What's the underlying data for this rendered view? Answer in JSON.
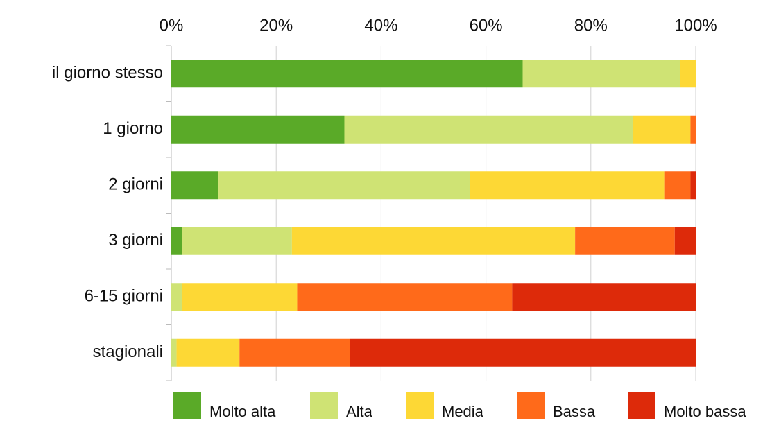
{
  "chart_data": {
    "type": "stacked_barh",
    "categories": [
      "il giorno stesso",
      "1 giorno",
      "2 giorni",
      "3 giorni",
      "6-15 giorni",
      "stagionali"
    ],
    "series": [
      {
        "name": "Molto alta",
        "color": "#5aaa28",
        "values": [
          67,
          33,
          9,
          2,
          0,
          0
        ]
      },
      {
        "name": "Alta",
        "color": "#cfe374",
        "values": [
          30,
          55,
          48,
          21,
          2,
          1
        ]
      },
      {
        "name": "Media",
        "color": "#fdd835",
        "values": [
          3,
          11,
          37,
          54,
          22,
          12
        ]
      },
      {
        "name": "Bassa",
        "color": "#ff6a1a",
        "values": [
          0,
          1,
          5,
          19,
          41,
          21
        ]
      },
      {
        "name": "Molto bassa",
        "color": "#dd2a0a",
        "values": [
          0,
          0,
          1,
          4,
          35,
          66
        ]
      }
    ],
    "xlim": [
      0,
      100
    ],
    "xticks": [
      {
        "value": 0,
        "label": "0%"
      },
      {
        "value": 20,
        "label": "20%"
      },
      {
        "value": 40,
        "label": "40%"
      },
      {
        "value": 60,
        "label": "60%"
      },
      {
        "value": 80,
        "label": "80%"
      },
      {
        "value": 100,
        "label": "100%"
      }
    ],
    "grid": true,
    "legend": "bottom"
  }
}
